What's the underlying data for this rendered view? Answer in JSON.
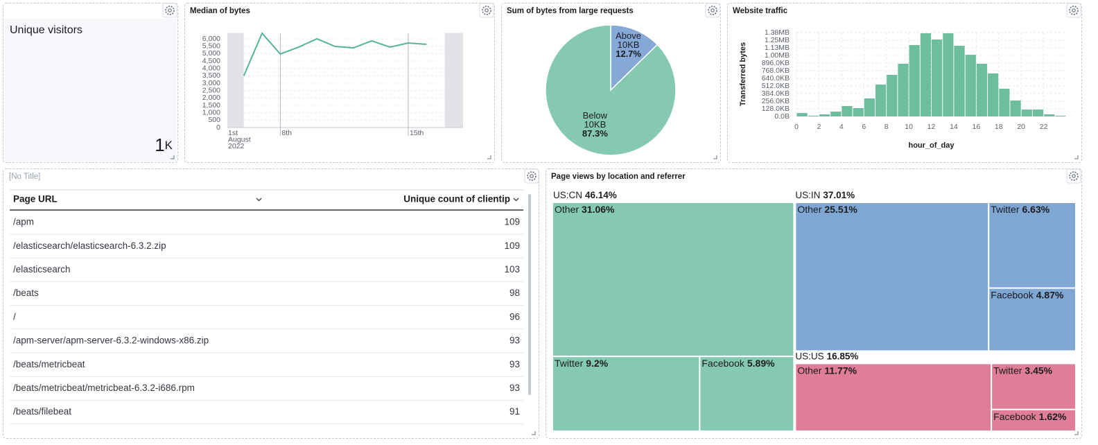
{
  "metric": {
    "title": "Unique visitors",
    "value": 1,
    "suffix": "K"
  },
  "chart_data": [
    {
      "type": "line",
      "title": "Median of bytes",
      "x": [
        6,
        7,
        8,
        9,
        10,
        11,
        12,
        13,
        14,
        15,
        16
      ],
      "series": [
        {
          "color": "#54b399",
          "values": [
            3500,
            6375,
            4969,
            5438,
            6000,
            5484,
            5390,
            5860,
            5438,
            5719,
            5625
          ]
        }
      ],
      "xlim": [
        5.1,
        18
      ],
      "x_start_label": [
        "1st",
        "August",
        "2022"
      ],
      "xticks": [
        {
          "value": 8,
          "label": "8th"
        },
        {
          "value": 15,
          "label": "15th"
        }
      ],
      "shaded_x_ranges": [
        [
          5.1,
          6
        ],
        [
          17,
          18
        ]
      ],
      "ylim": [
        0,
        6400
      ],
      "yticks": [
        0,
        500,
        {
          "value": 1000,
          "label": "1,000"
        },
        {
          "value": 1500,
          "label": "1,500"
        },
        {
          "value": 2000,
          "label": "2,000"
        },
        {
          "value": 2500,
          "label": "2,500"
        },
        {
          "value": 3000,
          "label": "3,000"
        },
        {
          "value": 3500,
          "label": "3,500"
        },
        {
          "value": 4000,
          "label": "4,000"
        },
        {
          "value": 4500,
          "label": "4,500"
        },
        {
          "value": 5000,
          "label": "5,000"
        },
        {
          "value": 5500,
          "label": "5,500"
        },
        {
          "value": 6000,
          "label": "6,000"
        }
      ],
      "grid": true
    },
    {
      "type": "pie",
      "title": "Sum of bytes from large requests",
      "categories": [
        "Above 10KB",
        "Below 10KB"
      ],
      "values": [
        12.7,
        87.3
      ],
      "value_labels": [
        "12.7%",
        "87.3%"
      ],
      "colors": [
        "#86a8d6",
        "#85c9b0"
      ]
    },
    {
      "type": "histogram",
      "title": "Website traffic",
      "bins": [
        0,
        1,
        2,
        3,
        4,
        5,
        6,
        7,
        8,
        9,
        10,
        11,
        12,
        13,
        14,
        15,
        16,
        17,
        18,
        19,
        20,
        21,
        22,
        23,
        24
      ],
      "values": [
        59000,
        12000,
        36000,
        83000,
        179000,
        143000,
        310000,
        548000,
        715000,
        906000,
        1227000,
        1430000,
        1322000,
        1430000,
        1215000,
        1060000,
        906000,
        739000,
        477000,
        274000,
        119000,
        119000,
        36000,
        12000
      ],
      "color": "#6dbd9f",
      "xlabel": "hour_of_day",
      "ylabel": "Transferred bytes",
      "xlim": [
        0,
        24
      ],
      "xticks": [
        0,
        2,
        4,
        6,
        8,
        10,
        12,
        14,
        16,
        18,
        20,
        22
      ],
      "ylim": [
        0,
        1441792
      ],
      "yticks": [
        {
          "value": 0,
          "label": "0.0B"
        },
        {
          "value": 131072,
          "label": "128.0KB"
        },
        {
          "value": 262144,
          "label": "256.0KB"
        },
        {
          "value": 393216,
          "label": "384.0KB"
        },
        {
          "value": 524288,
          "label": "512.0KB"
        },
        {
          "value": 655360,
          "label": "640.0KB"
        },
        {
          "value": 786432,
          "label": "768.0KB"
        },
        {
          "value": 917504,
          "label": "896.0KB"
        },
        {
          "value": 1048576,
          "label": "1.00MB"
        },
        {
          "value": 1179648,
          "label": "1.13MB"
        },
        {
          "value": 1310720,
          "label": "1.25MB"
        },
        {
          "value": 1441792,
          "label": "1.38MB"
        }
      ],
      "grid": true
    },
    {
      "type": "treemap",
      "title": "Page views by location and referrer",
      "groups": [
        {
          "name": "US:CN",
          "value": 46.14,
          "value_label": "46.14%",
          "color": "#85c9b0",
          "children": [
            {
              "name": "Other",
              "value": 31.06,
              "value_label": "31.06%"
            },
            {
              "name": "Twitter",
              "value": 9.2,
              "value_label": "9.2%"
            },
            {
              "name": "Facebook",
              "value": 5.89,
              "value_label": "5.89%"
            }
          ]
        },
        {
          "name": "US:IN",
          "value": 37.01,
          "value_label": "37.01%",
          "color": "#7fa7d4",
          "children": [
            {
              "name": "Other",
              "value": 25.51,
              "value_label": "25.51%"
            },
            {
              "name": "Twitter",
              "value": 6.63,
              "value_label": "6.63%"
            },
            {
              "name": "Facebook",
              "value": 4.87,
              "value_label": "4.87%"
            }
          ]
        },
        {
          "name": "US:US",
          "value": 16.85,
          "value_label": "16.85%",
          "color": "#e07d98",
          "children": [
            {
              "name": "Other",
              "value": 11.77,
              "value_label": "11.77%"
            },
            {
              "name": "Twitter",
              "value": 3.45,
              "value_label": "3.45%"
            },
            {
              "name": "Facebook",
              "value": 1.62,
              "value_label": "1.62%"
            }
          ]
        }
      ]
    }
  ],
  "table": {
    "title": "[No Title]",
    "columns": [
      "Page URL",
      "Unique count of clientip"
    ],
    "rows": [
      [
        "/apm",
        109
      ],
      [
        "/elasticsearch/elasticsearch-6.3.2.zip",
        109
      ],
      [
        "/elasticsearch",
        103
      ],
      [
        "/beats",
        98
      ],
      [
        "/",
        96
      ],
      [
        "/apm-server/apm-server-6.3.2-windows-x86.zip",
        93
      ],
      [
        "/beats/metricbeat",
        93
      ],
      [
        "/beats/metricbeat/metricbeat-6.3.2-i686.rpm",
        93
      ],
      [
        "/beats/filebeat",
        91
      ]
    ]
  }
}
